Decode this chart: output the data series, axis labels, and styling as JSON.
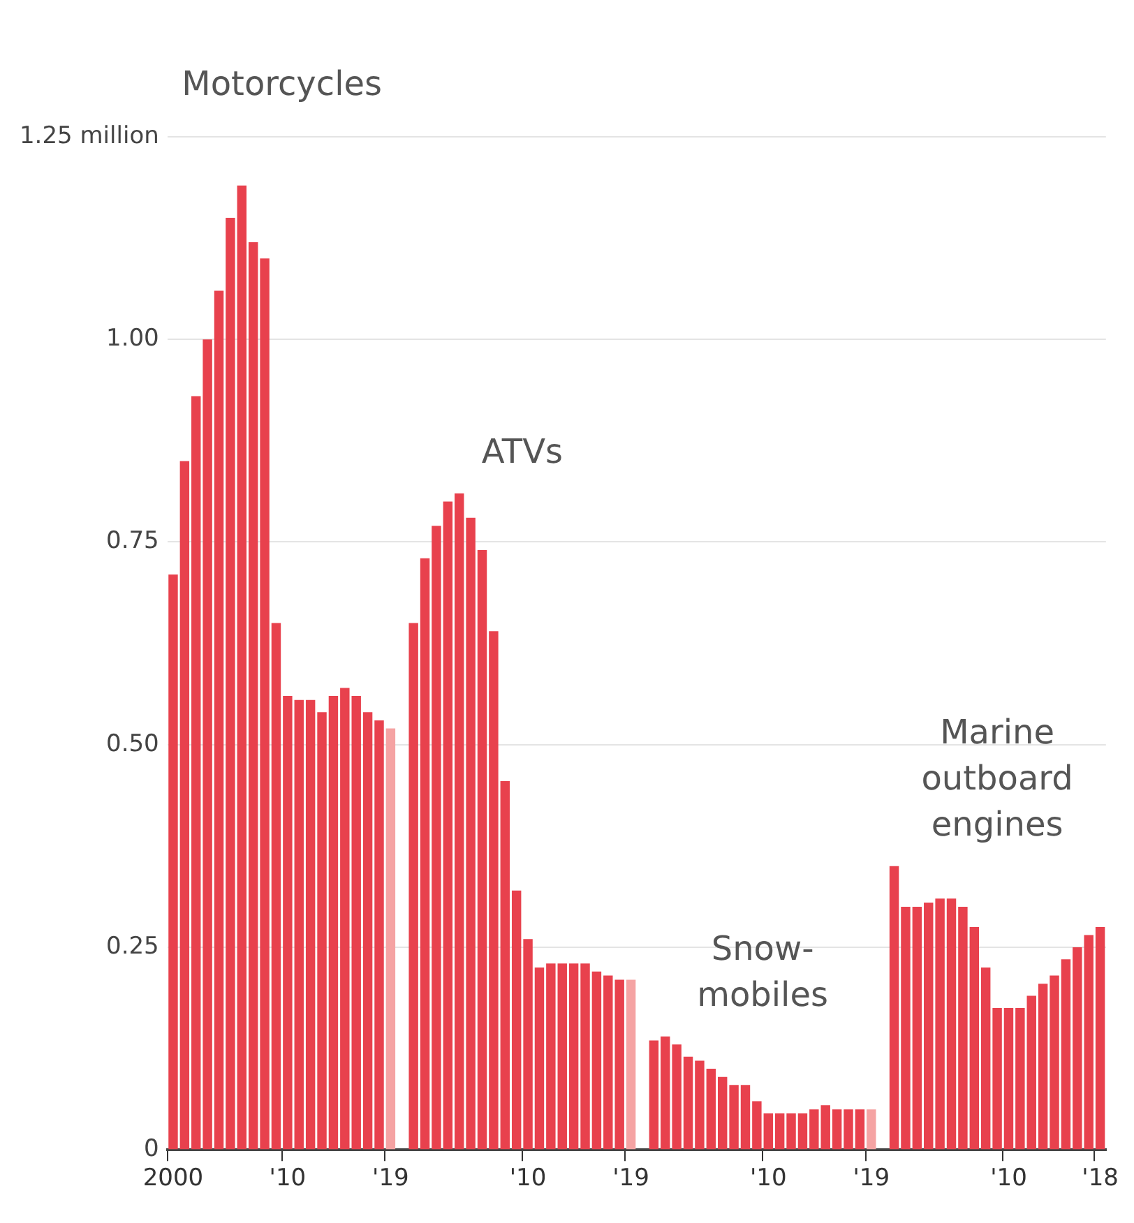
{
  "chart_data": {
    "type": "bar",
    "categories": [
      "2000",
      null,
      null,
      null,
      null,
      null,
      null,
      null,
      null,
      null,
      "'10",
      null,
      null,
      null,
      null,
      null,
      null,
      null,
      null,
      "'19",
      null,
      null,
      null,
      null,
      null,
      null,
      null,
      null,
      null,
      null,
      null,
      "'10",
      null,
      null,
      null,
      null,
      null,
      null,
      null,
      null,
      "'19",
      null,
      null,
      null,
      null,
      null,
      null,
      null,
      null,
      null,
      null,
      null,
      "'10",
      null,
      null,
      null,
      null,
      null,
      null,
      null,
      null,
      "'19",
      null,
      null,
      null,
      null,
      null,
      null,
      null,
      null,
      null,
      null,
      null,
      "'10",
      null,
      null,
      null,
      null,
      null,
      null,
      null,
      "'18"
    ],
    "values": [
      0.71,
      0.85,
      0.93,
      1.0,
      1.06,
      1.15,
      1.19,
      1.12,
      1.1,
      0.65,
      0.56,
      0.555,
      0.555,
      0.54,
      0.56,
      0.57,
      0.56,
      0.54,
      0.53,
      0.52,
      null,
      0.65,
      0.73,
      0.77,
      0.8,
      0.81,
      0.78,
      0.74,
      0.64,
      0.455,
      0.32,
      0.26,
      0.225,
      0.23,
      0.23,
      0.23,
      0.23,
      0.22,
      0.215,
      0.21,
      0.21,
      null,
      0.135,
      0.14,
      0.13,
      0.115,
      0.11,
      0.1,
      0.09,
      0.08,
      0.08,
      0.06,
      0.045,
      0.045,
      0.045,
      0.045,
      0.05,
      0.055,
      0.05,
      0.05,
      0.05,
      0.05,
      null,
      0.35,
      0.3,
      0.3,
      0.305,
      0.31,
      0.31,
      0.3,
      0.275,
      0.225,
      0.175,
      0.175,
      0.175,
      0.19,
      0.205,
      0.215,
      0.235,
      0.25,
      0.265,
      0.275
    ],
    "colors": [
      "#e8414d",
      "#e8414d",
      "#e8414d",
      "#e8414d",
      "#e8414d",
      "#e8414d",
      "#e8414d",
      "#e8414d",
      "#e8414d",
      "#e8414d",
      "#e8414d",
      "#e8414d",
      "#e8414d",
      "#e8414d",
      "#e8414d",
      "#e8414d",
      "#e8414d",
      "#e8414d",
      "#e8414d",
      "#f5a3a3",
      "#e8414d",
      "#e8414d",
      "#e8414d",
      "#e8414d",
      "#e8414d",
      "#e8414d",
      "#e8414d",
      "#e8414d",
      "#e8414d",
      "#e8414d",
      "#e8414d",
      "#e8414d",
      "#e8414d",
      "#e8414d",
      "#e8414d",
      "#e8414d",
      "#e8414d",
      "#e8414d",
      "#e8414d",
      "#e8414d",
      "#f5a3a3",
      "#e8414d",
      "#e8414d",
      "#e8414d",
      "#e8414d",
      "#e8414d",
      "#e8414d",
      "#e8414d",
      "#e8414d",
      "#e8414d",
      "#e8414d",
      "#e8414d",
      "#e8414d",
      "#e8414d",
      "#e8414d",
      "#e8414d",
      "#e8414d",
      "#e8414d",
      "#e8414d",
      "#e8414d",
      "#e8414d",
      "#f5a3a3",
      "#e8414d",
      "#e8414d",
      "#e8414d",
      "#e8414d",
      "#e8414d",
      "#e8414d",
      "#e8414d",
      "#e8414d",
      "#e8414d",
      "#e8414d",
      "#e8414d",
      "#e8414d",
      "#e8414d",
      "#e8414d",
      "#e8414d",
      "#e8414d",
      "#e8414d",
      "#e8414d",
      "#e8414d",
      "#e8414d"
    ],
    "ylim": [
      0,
      1.25
    ],
    "yticks": [
      0,
      0.25,
      {
        "value": 0.5,
        "label": "0.50"
      },
      0.75,
      {
        "value": 1,
        "label": "1.00"
      },
      {
        "value": 1.25,
        "label": "1.25 million"
      }
    ],
    "grid": "y",
    "annotations": [
      "Motorcycles",
      "ATVs",
      "Snow-\nmobiles",
      "Marine\noutboard\nengines"
    ]
  }
}
